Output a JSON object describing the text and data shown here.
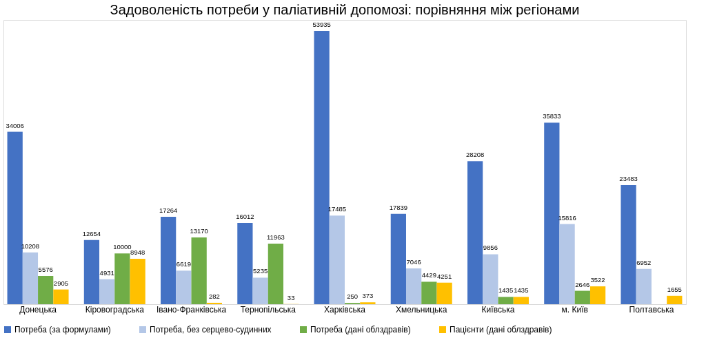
{
  "chart_data": {
    "type": "bar",
    "title": "Задоволеність потреби у паліативній допомозі: порівняння між регіонами",
    "categories": [
      "Донецька",
      "Кіровоградська",
      "Івано-Франківська",
      "Тернопільська",
      "Харківська",
      "Хмельницька",
      "Київська",
      "м. Київ",
      "Полтавська"
    ],
    "series": [
      {
        "name": "Потреба (за формулами)",
        "color": "#4472c4",
        "values": [
          34006,
          12654,
          17264,
          16012,
          53935,
          17839,
          28208,
          35833,
          23483
        ]
      },
      {
        "name": "Потреба, без серцево-судинних",
        "color": "#b4c7e7",
        "values": [
          10208,
          4931,
          6619,
          5235,
          17485,
          7046,
          9856,
          15816,
          6952
        ]
      },
      {
        "name": "Потреба (дані облздравів)",
        "color": "#70ad47",
        "values": [
          5576,
          10000,
          13170,
          11963,
          250,
          4429,
          1435,
          2646,
          null
        ]
      },
      {
        "name": "Пацієнти (дані облздравів)",
        "color": "#ffc000",
        "values": [
          2905,
          8948,
          282,
          33,
          373,
          4251,
          1435,
          3522,
          1655
        ]
      }
    ],
    "data_labels": true,
    "legend": "bottom",
    "grid": false
  }
}
